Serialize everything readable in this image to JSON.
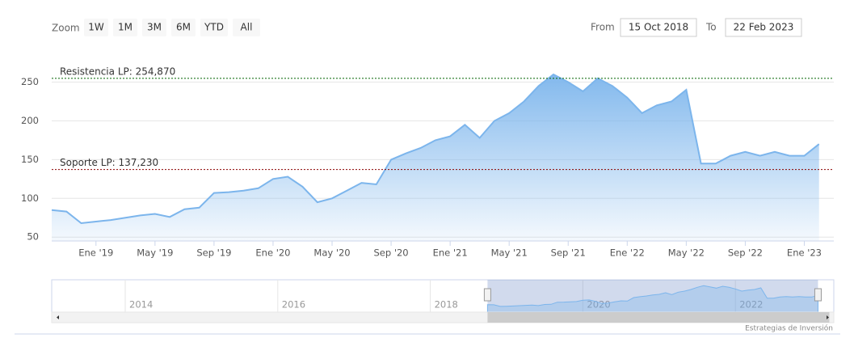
{
  "chart_data": {
    "type": "area",
    "zoom_label": "Zoom",
    "range_buttons": [
      "1W",
      "1M",
      "3M",
      "6M",
      "YTD",
      "All"
    ],
    "from_label": "From",
    "from_date": "15 Oct 2018",
    "to_label": "To",
    "to_date": "22 Feb 2023",
    "x": [
      "2018-10",
      "2018-11",
      "2018-12",
      "2019-01",
      "2019-02",
      "2019-03",
      "2019-04",
      "2019-05",
      "2019-06",
      "2019-07",
      "2019-08",
      "2019-09",
      "2019-10",
      "2019-11",
      "2019-12",
      "2020-01",
      "2020-02",
      "2020-03",
      "2020-04",
      "2020-05",
      "2020-06",
      "2020-07",
      "2020-08",
      "2020-09",
      "2020-10",
      "2020-11",
      "2020-12",
      "2021-01",
      "2021-02",
      "2021-03",
      "2021-04",
      "2021-05",
      "2021-06",
      "2021-07",
      "2021-08",
      "2021-09",
      "2021-10",
      "2021-11",
      "2021-12",
      "2022-01",
      "2022-02",
      "2022-03",
      "2022-04",
      "2022-05",
      "2022-06",
      "2022-07",
      "2022-08",
      "2022-09",
      "2022-10",
      "2022-11",
      "2022-12",
      "2023-01",
      "2023-02"
    ],
    "values": [
      85,
      83,
      68,
      70,
      72,
      75,
      78,
      80,
      76,
      86,
      88,
      107,
      108,
      110,
      113,
      125,
      128,
      115,
      95,
      100,
      110,
      120,
      118,
      150,
      158,
      165,
      175,
      180,
      195,
      178,
      200,
      210,
      225,
      245,
      260,
      250,
      238,
      255,
      245,
      230,
      210,
      220,
      225,
      240,
      145,
      145,
      155,
      160,
      155,
      160,
      155,
      155,
      170
    ],
    "color": "#7cb5ec",
    "xlim": [
      "2018-10",
      "2023-03"
    ],
    "xticks": [
      {
        "value": "2019-01",
        "label": "Ene '19"
      },
      {
        "value": "2019-05",
        "label": "May '19"
      },
      {
        "value": "2019-09",
        "label": "Sep '19"
      },
      {
        "value": "2020-01",
        "label": "Ene '20"
      },
      {
        "value": "2020-05",
        "label": "May '20"
      },
      {
        "value": "2020-09",
        "label": "Sep '20"
      },
      {
        "value": "2021-01",
        "label": "Ene '21"
      },
      {
        "value": "2021-05",
        "label": "May '21"
      },
      {
        "value": "2021-09",
        "label": "Sep '21"
      },
      {
        "value": "2022-01",
        "label": "Ene '22"
      },
      {
        "value": "2022-05",
        "label": "May '22"
      },
      {
        "value": "2022-09",
        "label": "Sep '22"
      },
      {
        "value": "2023-01",
        "label": "Ene '23"
      }
    ],
    "ylim": [
      45,
      285
    ],
    "yticks": [
      50,
      100,
      150,
      200,
      250
    ],
    "grid": true,
    "plot_lines": [
      {
        "value": 254.87,
        "label": "Resistencia LP: 254,870",
        "color": "#006400"
      },
      {
        "value": 137.23,
        "label": "Soporte LP: 137,230",
        "color": "#8b0000"
      }
    ],
    "navigator_xticks": [
      2014,
      2016,
      2018,
      2020,
      2022
    ],
    "credits": "Estrategias de Inversión"
  }
}
